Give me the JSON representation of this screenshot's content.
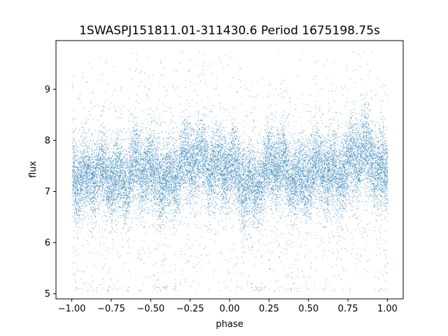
{
  "chart_data": {
    "type": "scatter",
    "title": "1SWASPJ151811.01-311430.6 Period 1675198.75s",
    "xlabel": "phase",
    "ylabel": "flux",
    "xlim": [
      -1.1,
      1.1
    ],
    "ylim": [
      4.9,
      9.95
    ],
    "xticks": [
      -1.0,
      -0.75,
      -0.5,
      -0.25,
      0.0,
      0.25,
      0.5,
      0.75,
      1.0
    ],
    "xtick_labels": [
      "−1.00",
      "−0.75",
      "−0.50",
      "−0.25",
      "0.00",
      "0.25",
      "0.50",
      "0.75",
      "1.00"
    ],
    "yticks": [
      5,
      6,
      7,
      8,
      9
    ],
    "ytick_labels": [
      "5",
      "6",
      "7",
      "8",
      "9"
    ],
    "grid": false,
    "marker_color": "#1f77b4",
    "series": [
      {
        "description_profile_phase": [
          -1.0,
          -0.9,
          -0.8,
          -0.7,
          -0.6,
          -0.55,
          -0.5,
          -0.4,
          -0.3,
          -0.2,
          -0.15,
          -0.1,
          0.0,
          0.1,
          0.2,
          0.3,
          0.4,
          0.45,
          0.5,
          0.6,
          0.7,
          0.8,
          0.85,
          0.9,
          1.0
        ],
        "median_flux": [
          7.4,
          7.35,
          7.2,
          7.3,
          7.45,
          7.4,
          7.3,
          7.35,
          7.45,
          7.6,
          7.7,
          7.6,
          7.35,
          7.2,
          7.3,
          7.45,
          7.4,
          7.3,
          7.3,
          7.35,
          7.5,
          7.6,
          7.7,
          7.6,
          7.4
        ]
      }
    ],
    "n_points_approx": 20000
  }
}
